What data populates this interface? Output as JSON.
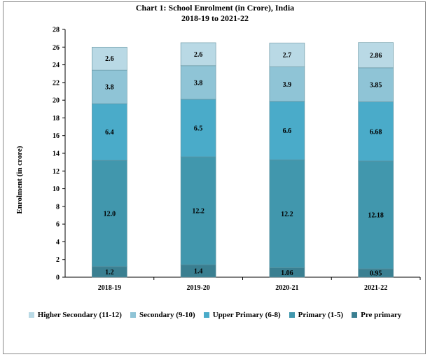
{
  "chart_data": {
    "type": "bar",
    "stacked": true,
    "title": "Chart 1: School Enrolment (in Crore), India",
    "subtitle": "2018-19 to 2021-22",
    "ylabel": "Enrolment (in crore)",
    "xlabel": "",
    "ylim": [
      0,
      28
    ],
    "yticks": [
      0,
      2,
      4,
      6,
      8,
      10,
      12,
      14,
      16,
      18,
      20,
      22,
      24,
      26,
      28
    ],
    "grid": false,
    "legend_position": "bottom",
    "categories": [
      "2018-19",
      "2019-20",
      "2020-21",
      "2021-22"
    ],
    "series": [
      {
        "name": "Pre primary",
        "color": "#3a7f91",
        "values": [
          1.2,
          1.4,
          1.06,
          0.95
        ],
        "labels": [
          "1.2",
          "1.4",
          "1.06",
          "0.95"
        ]
      },
      {
        "name": "Primary (1-5)",
        "color": "#4197ad",
        "values": [
          12.0,
          12.2,
          12.2,
          12.18
        ],
        "labels": [
          "12.0",
          "12.2",
          "12.2",
          "12.18"
        ]
      },
      {
        "name": "Upper Primary (6-8)",
        "color": "#4aabc9",
        "values": [
          6.4,
          6.5,
          6.6,
          6.68
        ],
        "labels": [
          "6.4",
          "6.5",
          "6.6",
          "6.68"
        ]
      },
      {
        "name": "Secondary (9-10)",
        "color": "#8fc4d6",
        "values": [
          3.8,
          3.8,
          3.9,
          3.85
        ],
        "labels": [
          "3.8",
          "3.8",
          "3.9",
          "3.85"
        ]
      },
      {
        "name": "Higher Secondary (11-12)",
        "color": "#b9d9e5",
        "values": [
          2.6,
          2.6,
          2.7,
          2.86
        ],
        "labels": [
          "2.6",
          "2.6",
          "2.7",
          "2.86"
        ]
      }
    ],
    "legend_order": [
      "Higher Secondary (11-12)",
      "Secondary (9-10)",
      "Upper Primary (6-8)",
      "Primary (1-5)",
      "Pre primary"
    ]
  }
}
